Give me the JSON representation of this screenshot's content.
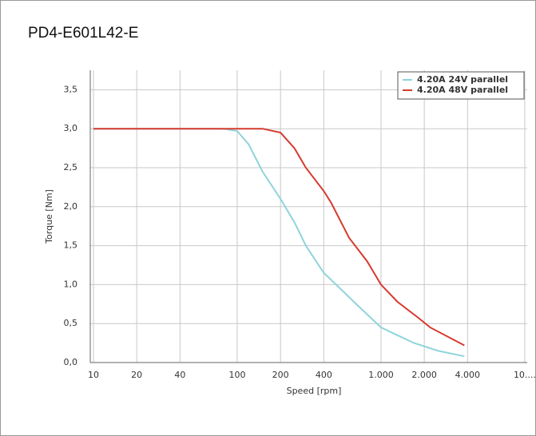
{
  "chart_data": {
    "type": "line",
    "title": "PD4-E601L42-E",
    "x_label": "Speed [rpm]",
    "y_label": "Torque [Nm]",
    "x_log": true,
    "grid": true,
    "legend": "upper right",
    "xlim": [
      9.5,
      10400
    ],
    "ylim": [
      0,
      3.75
    ],
    "xticks": [
      10,
      20,
      40,
      100,
      200,
      400,
      {
        "value": 1000,
        "label": "1.000"
      },
      {
        "value": 2000,
        "label": "2.000"
      },
      {
        "value": 4000,
        "label": "4.000"
      },
      {
        "value": 10000,
        "label": "10...."
      }
    ],
    "yticks": [
      {
        "value": 0,
        "label": "0,0"
      },
      {
        "value": 0.5,
        "label": "0,5"
      },
      {
        "value": 1,
        "label": "1,0"
      },
      {
        "value": 1.5,
        "label": "1,5"
      },
      {
        "value": 2,
        "label": "2,0"
      },
      {
        "value": 2.5,
        "label": "2,5"
      },
      {
        "value": 3,
        "label": "3,0"
      },
      {
        "value": 3.5,
        "label": "3,5"
      }
    ],
    "series": [
      {
        "name": "4.20A 24V parallel",
        "color": "#8fd4da",
        "x": [
          10,
          40,
          80,
          100,
          120,
          150,
          200,
          250,
          300,
          400,
          500,
          700,
          1000,
          1300,
          1700,
          2500,
          3800
        ],
        "values": [
          3.0,
          3.0,
          3.0,
          2.97,
          2.8,
          2.45,
          2.1,
          1.8,
          1.5,
          1.15,
          0.98,
          0.72,
          0.45,
          0.35,
          0.25,
          0.15,
          0.08
        ]
      },
      {
        "name": "4.20A 48V parallel",
        "color": "#d63a2f",
        "x": [
          10,
          40,
          100,
          150,
          200,
          250,
          300,
          400,
          450,
          600,
          800,
          1000,
          1300,
          1800,
          2200,
          3800
        ],
        "values": [
          3.0,
          3.0,
          3.0,
          3.0,
          2.95,
          2.75,
          2.5,
          2.2,
          2.05,
          1.6,
          1.3,
          1.0,
          0.78,
          0.58,
          0.45,
          0.22
        ]
      }
    ]
  }
}
